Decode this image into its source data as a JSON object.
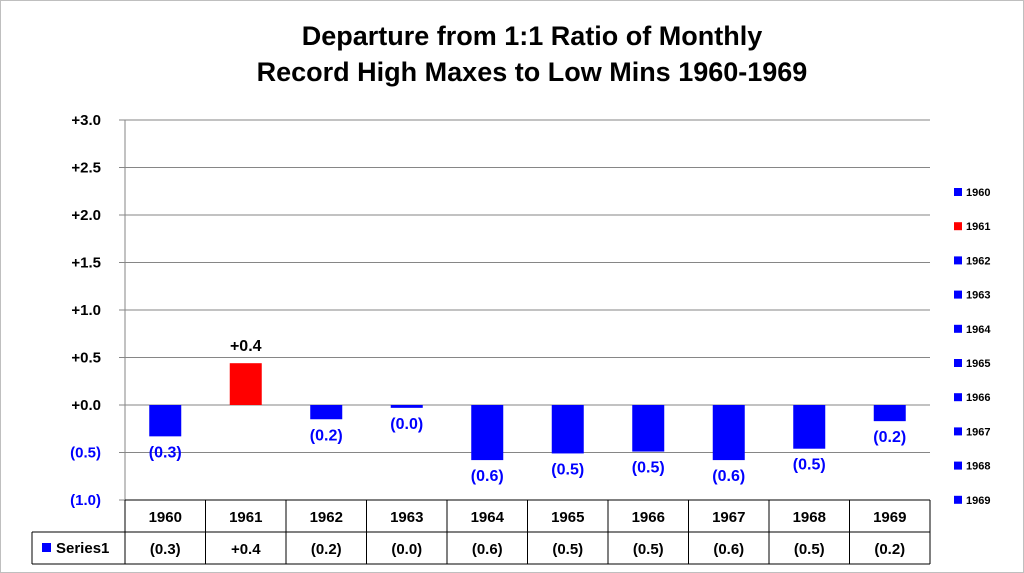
{
  "chart_data": {
    "type": "bar",
    "title": "Departure from 1:1 Ratio of Monthly",
    "subtitle": "Record High Maxes to Low Mins 1960-1969",
    "categories": [
      "1960",
      "1961",
      "1962",
      "1963",
      "1964",
      "1965",
      "1966",
      "1967",
      "1968",
      "1969"
    ],
    "series": [
      {
        "name": "Series1",
        "values": [
          -0.33,
          0.44,
          -0.15,
          -0.03,
          -0.58,
          -0.51,
          -0.49,
          -0.58,
          -0.46,
          -0.17
        ],
        "data_labels": [
          "(0.3)",
          "+0.4",
          "(0.2)",
          "(0.0)",
          "(0.6)",
          "(0.5)",
          "(0.5)",
          "(0.6)",
          "(0.5)",
          "(0.2)"
        ]
      }
    ],
    "ylim": [
      -1.0,
      3.0
    ],
    "y_ticks": [
      -1.0,
      -0.5,
      0.0,
      0.5,
      1.0,
      1.5,
      2.0,
      2.5,
      3.0
    ],
    "y_tick_labels": [
      "(1.0)",
      "(0.5)",
      "+0.0",
      "+0.5",
      "+1.0",
      "+1.5",
      "+2.0",
      "+2.5",
      "+3.0"
    ],
    "grid": true,
    "legend_position": "right",
    "legend_entries": [
      "1960",
      "1961",
      "1962",
      "1963",
      "1964",
      "1965",
      "1966",
      "1967",
      "1968",
      "1969"
    ],
    "data_table": true,
    "xlabel": "",
    "ylabel": ""
  },
  "colors": {
    "positive": "#ff0000",
    "negative": "#0000ff",
    "positive_label": "#000000",
    "negative_label": "#0000ff",
    "grid": "#868686"
  }
}
